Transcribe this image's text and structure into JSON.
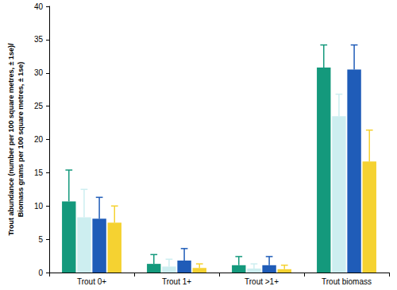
{
  "chart_data": {
    "type": "bar",
    "ylabel": "Trout abundance (number per 100 square metres, ± 1se)/\nBiomass grams per 100 square metres, ± 1se)",
    "categories": [
      "Trout 0+",
      "Trout 1+",
      "Trout >1+",
      "Trout biomass"
    ],
    "series": [
      {
        "color": "#14997c",
        "values": [
          10.7,
          1.3,
          1.1,
          30.8
        ],
        "errors": [
          4.7,
          1.4,
          1.3,
          3.4
        ]
      },
      {
        "color": "#cdeef0",
        "values": [
          8.3,
          0.9,
          0.6,
          23.5
        ],
        "errors": [
          4.2,
          1.1,
          0.7,
          3.3
        ]
      },
      {
        "color": "#1f5cb8",
        "values": [
          8.1,
          1.8,
          1.1,
          30.5
        ],
        "errors": [
          3.2,
          1.8,
          1.3,
          3.7
        ]
      },
      {
        "color": "#f5d231",
        "values": [
          7.5,
          0.7,
          0.5,
          16.7
        ],
        "errors": [
          2.5,
          0.6,
          0.6,
          4.7
        ]
      }
    ],
    "ylim": [
      0,
      40
    ],
    "yticks": [
      0,
      5,
      10,
      15,
      20,
      25,
      30,
      35,
      40
    ],
    "grid": false
  }
}
